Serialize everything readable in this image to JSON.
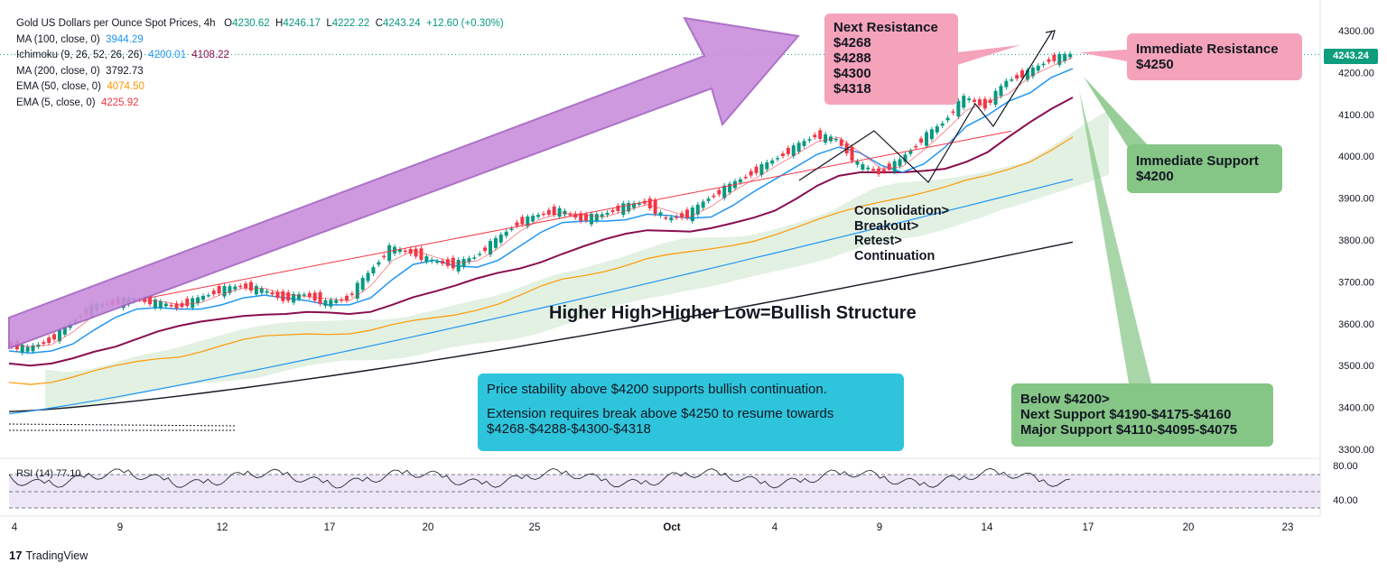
{
  "header": {
    "title": "Gold US Dollars per Ounce Spot Prices, 4h",
    "ohlc": {
      "o_label": "O",
      "o": "4230.62",
      "h_label": "H",
      "h": "4246.17",
      "l_label": "L",
      "l": "4222.22",
      "c_label": "C",
      "c": "4243.24",
      "change": "+12.60 (+0.30%)"
    }
  },
  "indicators": [
    {
      "name": "MA (100, close, 0)",
      "value": "3944.29",
      "color": "#2196f3"
    },
    {
      "name": "Ichimoku (9, 26, 52, 26, 26)",
      "value": "4200.01",
      "value2": "4108.22",
      "color": "#2196f3",
      "color2": "#880e4f"
    },
    {
      "name": "MA (200, close, 0)",
      "value": "3792.73",
      "color": "#131722"
    },
    {
      "name": "EMA (50, close, 0)",
      "value": "4074.50",
      "color": "#ff9800"
    },
    {
      "name": "EMA (5, close, 0)",
      "value": "4225.92",
      "color": "#f23645"
    }
  ],
  "annotations": {
    "next_resistance": [
      "Next Resistance",
      "$4268",
      "$4288",
      "$4300",
      "$4318"
    ],
    "immediate_resistance": [
      "Immediate Resistance",
      "$4250"
    ],
    "immediate_support": [
      "Immediate Support",
      "$4200"
    ],
    "support_levels": [
      "Below $4200>",
      "Next Support  $4190-$4175-$4160",
      "Major Support $4110-$4095-$4075"
    ],
    "pattern": [
      "Consolidation>",
      "Breakout>",
      "Retest>",
      "Continuation"
    ],
    "structure": "Higher High>Higher Low=Bullish Structure",
    "outlook": [
      "Price stability above $4200 supports bullish continuation.",
      "",
      "Extension requires break above $4250 to resume towards",
      "$4268-$4288-$4300-$4318"
    ]
  },
  "price_label": "4243.24",
  "rsi_label": "RSI (14)  77.10",
  "brand": "TradingView",
  "chart_data": {
    "type": "candlestick",
    "interval": "4h",
    "y_axis_ticks": [
      3300,
      3400,
      3500,
      3600,
      3700,
      3800,
      3900,
      4000,
      4100,
      4200,
      4300
    ],
    "ylim": [
      3280,
      4330
    ],
    "x_axis_ticks": [
      "4",
      "9",
      "12",
      "17",
      "20",
      "25",
      "Oct",
      "4",
      "9",
      "14",
      "17",
      "20",
      "23"
    ],
    "current_price": 4243.24,
    "close_path_estimate": [
      3550,
      3540,
      3560,
      3600,
      3640,
      3650,
      3660,
      3650,
      3640,
      3660,
      3680,
      3690,
      3680,
      3660,
      3670,
      3650,
      3660,
      3720,
      3780,
      3770,
      3750,
      3740,
      3760,
      3800,
      3840,
      3860,
      3870,
      3850,
      3860,
      3880,
      3890,
      3850,
      3860,
      3900,
      3930,
      3960,
      3990,
      4020,
      4050,
      4040,
      3980,
      3960,
      3990,
      4040,
      4080,
      4140,
      4120,
      4180,
      4200,
      4230,
      4243
    ],
    "rsi": {
      "period": 14,
      "value": 77.1,
      "levels": [
        70,
        50,
        30
      ],
      "axis_ticks": [
        80,
        40
      ]
    },
    "colors": {
      "up": "#089981",
      "down": "#f23645",
      "ema5": "#f23645",
      "ema50": "#ff9800",
      "ma100": "#2196f3",
      "ma200": "#131722",
      "kijun": "#880e4f",
      "cloud": "#cfe8cf"
    }
  }
}
